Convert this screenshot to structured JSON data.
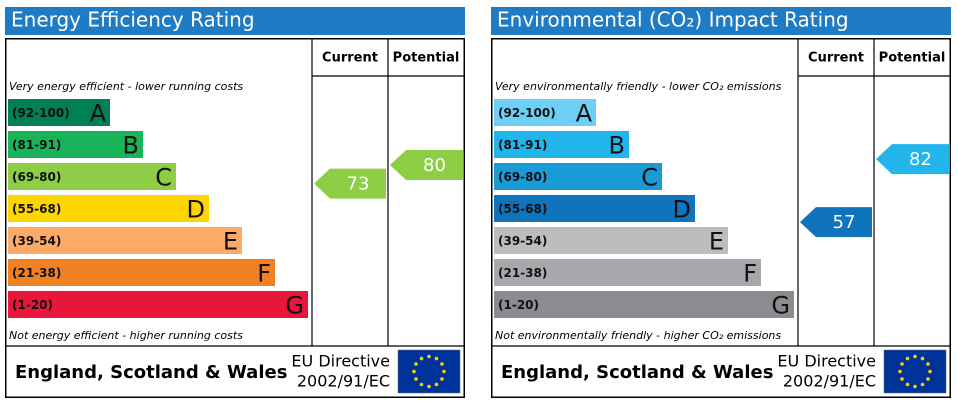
{
  "chart_data": [
    {
      "type": "rating",
      "title": "Energy Efficiency Rating",
      "top_note": "Very energy efficient - lower running costs",
      "bottom_note": "Not energy efficient - higher running costs",
      "bands": [
        {
          "range": "(92-100)",
          "letter": "A",
          "min": 92,
          "max": 100,
          "color": "#008054"
        },
        {
          "range": "(81-91)",
          "letter": "B",
          "min": 81,
          "max": 91,
          "color": "#19b459"
        },
        {
          "range": "(69-80)",
          "letter": "C",
          "min": 69,
          "max": 80,
          "color": "#8dce46"
        },
        {
          "range": "(55-68)",
          "letter": "D",
          "min": 55,
          "max": 68,
          "color": "#ffd500"
        },
        {
          "range": "(39-54)",
          "letter": "E",
          "min": 39,
          "max": 54,
          "color": "#fcaa65"
        },
        {
          "range": "(21-38)",
          "letter": "F",
          "min": 21,
          "max": 38,
          "color": "#ef8023"
        },
        {
          "range": "(1-20)",
          "letter": "G",
          "min": 1,
          "max": 20,
          "color": "#e9153b"
        }
      ],
      "series": [
        {
          "name": "Current",
          "value": 73
        },
        {
          "name": "Potential",
          "value": 80
        }
      ],
      "footer": {
        "region": "England, Scotland & Wales",
        "directive": "EU Directive",
        "code": "2002/91/EC"
      }
    },
    {
      "type": "rating",
      "title": "Environmental (CO₂) Impact Rating",
      "top_note": "Very environmentally friendly - lower CO₂ emissions",
      "bottom_note": "Not environmentally friendly - higher CO₂ emissions",
      "bands": [
        {
          "range": "(92-100)",
          "letter": "A",
          "min": 92,
          "max": 100,
          "color": "#6dcff6"
        },
        {
          "range": "(81-91)",
          "letter": "B",
          "min": 81,
          "max": 91,
          "color": "#22b5eb"
        },
        {
          "range": "(69-80)",
          "letter": "C",
          "min": 69,
          "max": 80,
          "color": "#1a9ad7"
        },
        {
          "range": "(55-68)",
          "letter": "D",
          "min": 55,
          "max": 68,
          "color": "#0f74bc"
        },
        {
          "range": "(39-54)",
          "letter": "E",
          "min": 39,
          "max": 54,
          "color": "#bbbdbf"
        },
        {
          "range": "(21-38)",
          "letter": "F",
          "min": 21,
          "max": 38,
          "color": "#a6a8ab"
        },
        {
          "range": "(1-20)",
          "letter": "G",
          "min": 1,
          "max": 20,
          "color": "#8a8c8f"
        }
      ],
      "series": [
        {
          "name": "Current",
          "value": 57
        },
        {
          "name": "Potential",
          "value": 82
        }
      ],
      "footer": {
        "region": "England, Scotland & Wales",
        "directive": "EU Directive",
        "code": "2002/91/EC"
      }
    }
  ]
}
